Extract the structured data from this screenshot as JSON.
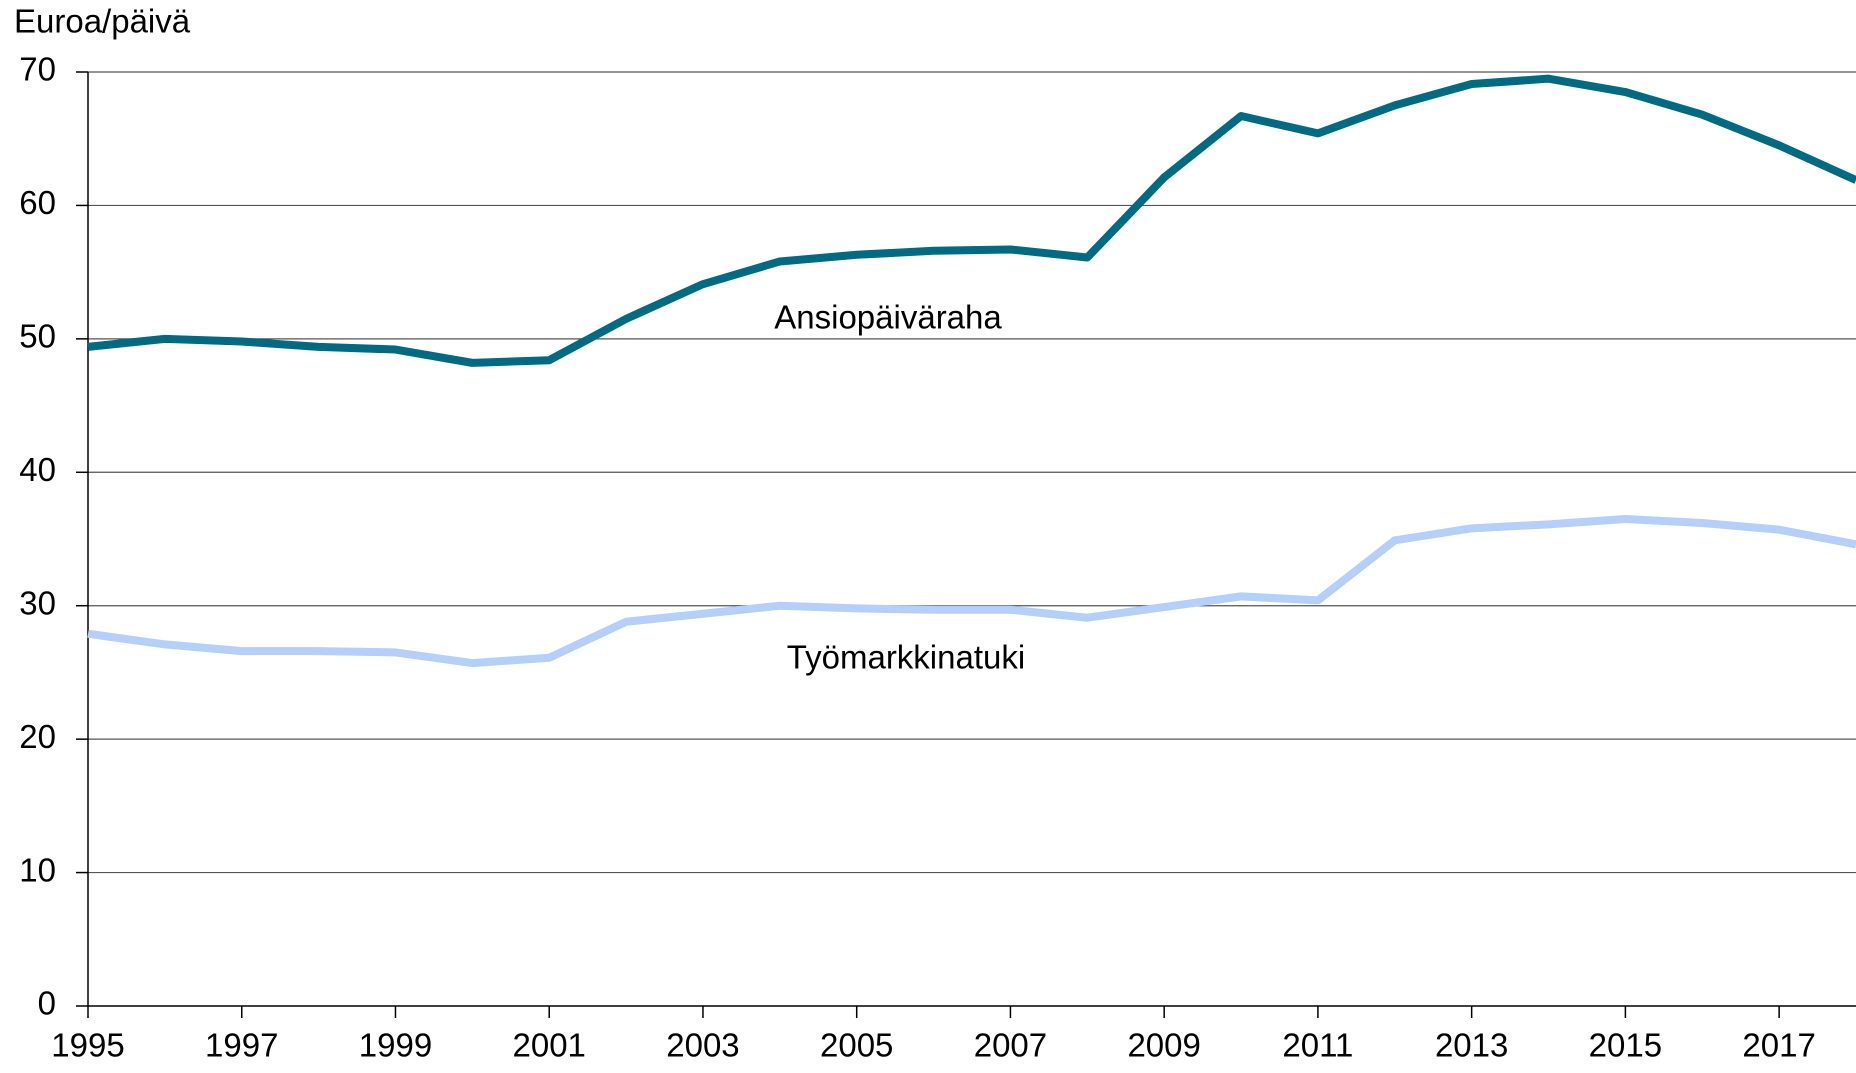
{
  "chart_data": {
    "type": "line",
    "y_label": "Euroa/päivä",
    "x": [
      1995,
      1996,
      1997,
      1998,
      1999,
      2000,
      2001,
      2002,
      2003,
      2004,
      2005,
      2006,
      2007,
      2008,
      2009,
      2010,
      2011,
      2012,
      2013,
      2014,
      2015,
      2016,
      2017,
      2018
    ],
    "series": [
      {
        "name": "Ansiopäiväraha",
        "color": "#006a82",
        "values": [
          49.4,
          50.0,
          49.8,
          49.4,
          49.2,
          48.2,
          48.4,
          51.5,
          54.1,
          55.8,
          56.3,
          56.6,
          56.7,
          56.1,
          62.1,
          66.7,
          65.4,
          67.5,
          69.1,
          69.5,
          68.5,
          66.8,
          64.5,
          61.9
        ]
      },
      {
        "name": "Työmarkkinatuki",
        "color": "#b4cffa",
        "values": [
          27.9,
          27.1,
          26.6,
          26.6,
          26.5,
          25.7,
          26.1,
          28.8,
          29.4,
          30.0,
          29.8,
          29.7,
          29.7,
          29.1,
          29.9,
          30.7,
          30.4,
          34.9,
          35.8,
          36.1,
          36.5,
          36.2,
          35.7,
          34.6
        ]
      }
    ],
    "xlim": [
      1995,
      2018
    ],
    "xticks": [
      1995,
      1997,
      1999,
      2001,
      2003,
      2005,
      2007,
      2009,
      2011,
      2013,
      2015,
      2017
    ],
    "ylim": [
      0,
      70
    ],
    "yticks": [
      0,
      10,
      20,
      30,
      40,
      50,
      60,
      70
    ],
    "grid": true
  }
}
